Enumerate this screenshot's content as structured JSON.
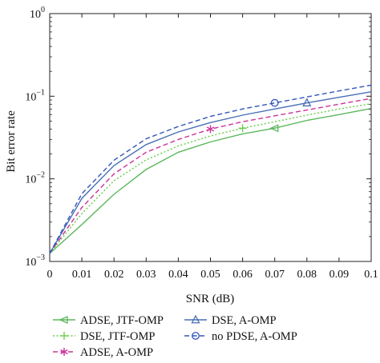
{
  "chart_data": {
    "type": "line",
    "xlabel": "SNR (dB)",
    "ylabel": "Bit error rate",
    "y_scale": "log",
    "xlim": [
      0,
      0.1
    ],
    "ylim": [
      0.001,
      1
    ],
    "x_ticks": [
      "0",
      "0.01",
      "0.02",
      "0.03",
      "0.04",
      "0.05",
      "0.06",
      "0.07",
      "0.08",
      "0.09",
      "0.1"
    ],
    "y_ticks": [
      {
        "value": 0.001,
        "base": "10",
        "exp": "−3"
      },
      {
        "value": 0.01,
        "base": "10",
        "exp": "−2"
      },
      {
        "value": 0.1,
        "base": "10",
        "exp": "−1"
      },
      {
        "value": 1,
        "base": "10",
        "exp": "0"
      }
    ],
    "x": [
      0,
      0.01,
      0.02,
      0.03,
      0.04,
      0.05,
      0.06,
      0.07,
      0.08,
      0.09,
      0.1
    ],
    "grid": false,
    "legend_position": "bottom",
    "series": [
      {
        "name": "ADSE, JTF-OMP",
        "color": "#5cb85c",
        "dash": "solid",
        "marker": "triangle-left",
        "marker_x": 0.07,
        "values": [
          0.00125,
          0.0028,
          0.0065,
          0.013,
          0.021,
          0.028,
          0.035,
          0.041,
          0.051,
          0.06,
          0.071
        ]
      },
      {
        "name": "DSE, JTF-OMP",
        "color": "#66cc44",
        "dash": "dotted",
        "marker": "plus",
        "marker_x": 0.06,
        "values": [
          0.00125,
          0.0038,
          0.0095,
          0.017,
          0.025,
          0.033,
          0.041,
          0.049,
          0.059,
          0.07,
          0.081
        ]
      },
      {
        "name": "ADSE, A-OMP",
        "color": "#cc3399",
        "dash": "dashed",
        "marker": "asterisk",
        "marker_x": 0.05,
        "values": [
          0.00125,
          0.0045,
          0.0115,
          0.021,
          0.03,
          0.04,
          0.049,
          0.058,
          0.068,
          0.08,
          0.094
        ]
      },
      {
        "name": "DSE, A-OMP",
        "color": "#4a6fb5",
        "dash": "solid",
        "marker": "triangle-up",
        "marker_x": 0.08,
        "values": [
          0.00125,
          0.0058,
          0.0145,
          0.026,
          0.037,
          0.048,
          0.059,
          0.07,
          0.083,
          0.097,
          0.113
        ]
      },
      {
        "name": "no PDSE, A-OMP",
        "color": "#3355bb",
        "dash": "dashed",
        "marker": "circle",
        "marker_x": 0.07,
        "values": [
          0.00125,
          0.0066,
          0.0168,
          0.0305,
          0.043,
          0.057,
          0.07,
          0.083,
          0.098,
          0.116,
          0.136
        ]
      }
    ]
  }
}
